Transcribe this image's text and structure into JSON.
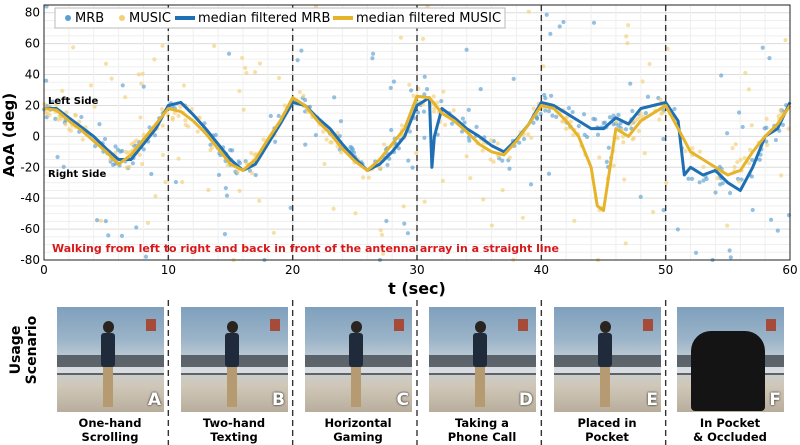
{
  "chart_data": {
    "type": "scatter",
    "xlabel": "t (sec)",
    "ylabel": "AoA (deg)",
    "xlim": [
      0,
      60
    ],
    "ylim": [
      -80,
      85
    ],
    "xticks": [
      0,
      10,
      20,
      30,
      40,
      50,
      60
    ],
    "yticks": [
      -80,
      -60,
      -40,
      -20,
      0,
      20,
      40,
      60,
      80
    ],
    "grid": true,
    "legend_position": "top",
    "legend": [
      "MRB",
      "MUSIC",
      "median filtered MRB",
      "median filtered MUSIC"
    ],
    "series": [
      {
        "name": "median filtered MRB",
        "color": "#1f6fb4",
        "x": [
          0,
          1,
          2,
          3,
          4,
          5,
          6,
          7,
          8,
          9,
          10,
          11,
          12,
          13,
          14,
          15,
          16,
          17,
          18,
          19,
          20,
          21,
          22,
          23,
          24,
          25,
          26,
          27,
          28,
          29,
          30,
          31,
          31.2,
          31.4,
          32,
          33,
          34,
          35,
          36,
          37,
          38,
          39,
          40,
          41,
          42,
          43,
          44,
          45,
          46,
          47,
          48,
          49,
          50,
          51,
          51.5,
          52,
          53,
          54,
          55,
          56,
          57,
          58,
          59,
          60
        ],
        "y": [
          18,
          18,
          12,
          6,
          0,
          -8,
          -15,
          -15,
          -5,
          5,
          20,
          22,
          14,
          5,
          -5,
          -15,
          -22,
          -18,
          -5,
          8,
          22,
          20,
          12,
          5,
          -5,
          -14,
          -22,
          -18,
          -10,
          0,
          20,
          25,
          -20,
          0,
          18,
          12,
          5,
          0,
          -6,
          -10,
          -2,
          8,
          22,
          20,
          15,
          10,
          5,
          5,
          12,
          8,
          18,
          20,
          22,
          10,
          -25,
          -20,
          -25,
          -22,
          -30,
          -35,
          -20,
          0,
          5,
          22
        ]
      },
      {
        "name": "median filtered MUSIC",
        "color": "#e6b42a",
        "x": [
          0,
          1,
          2,
          3,
          4,
          5,
          6,
          7,
          8,
          9,
          10,
          11,
          12,
          13,
          14,
          15,
          16,
          17,
          18,
          19,
          20,
          21,
          22,
          23,
          24,
          25,
          26,
          27,
          28,
          29,
          30,
          31,
          32,
          33,
          34,
          35,
          36,
          37,
          38,
          39,
          40,
          41,
          42,
          43,
          44,
          44.5,
          45,
          46,
          47,
          48,
          49,
          50,
          51,
          52,
          53,
          54,
          55,
          56,
          57,
          58,
          59,
          60
        ],
        "y": [
          18,
          17,
          10,
          4,
          -3,
          -10,
          -18,
          -12,
          -2,
          8,
          18,
          16,
          10,
          2,
          -8,
          -18,
          -22,
          -15,
          -2,
          10,
          25,
          20,
          10,
          2,
          -8,
          -16,
          -22,
          -15,
          -5,
          5,
          26,
          25,
          15,
          10,
          3,
          -5,
          -10,
          -12,
          -3,
          8,
          20,
          18,
          10,
          0,
          -20,
          -45,
          -48,
          5,
          0,
          10,
          15,
          20,
          5,
          -10,
          -15,
          -20,
          -25,
          -22,
          -10,
          0,
          8,
          20
        ]
      }
    ],
    "scatter_series": [
      {
        "name": "MRB",
        "color": "#5b9fd1"
      },
      {
        "name": "MUSIC",
        "color": "#f3cf79"
      }
    ],
    "event_lines_x": [
      10,
      20,
      30,
      40,
      50
    ],
    "annotations": {
      "left_side": "Left Side",
      "right_side": "Right Side",
      "walking": "Walking from left to right and back in front of the antenna array in a straight line"
    }
  },
  "usage_scenario": {
    "label": "Usage\nScenario",
    "panels": [
      {
        "letter": "A",
        "caption": "One-hand\nScrolling"
      },
      {
        "letter": "B",
        "caption": "Two-hand\nTexting"
      },
      {
        "letter": "C",
        "caption": "Horizontal\nGaming"
      },
      {
        "letter": "D",
        "caption": "Taking a\nPhone Call"
      },
      {
        "letter": "E",
        "caption": "Placed in\nPocket"
      },
      {
        "letter": "F",
        "caption": "In Pocket\n& Occluded"
      }
    ]
  },
  "colors": {
    "mrb": "#1f6fb4",
    "music": "#e6b42a",
    "annotation_red": "#d7191c"
  }
}
